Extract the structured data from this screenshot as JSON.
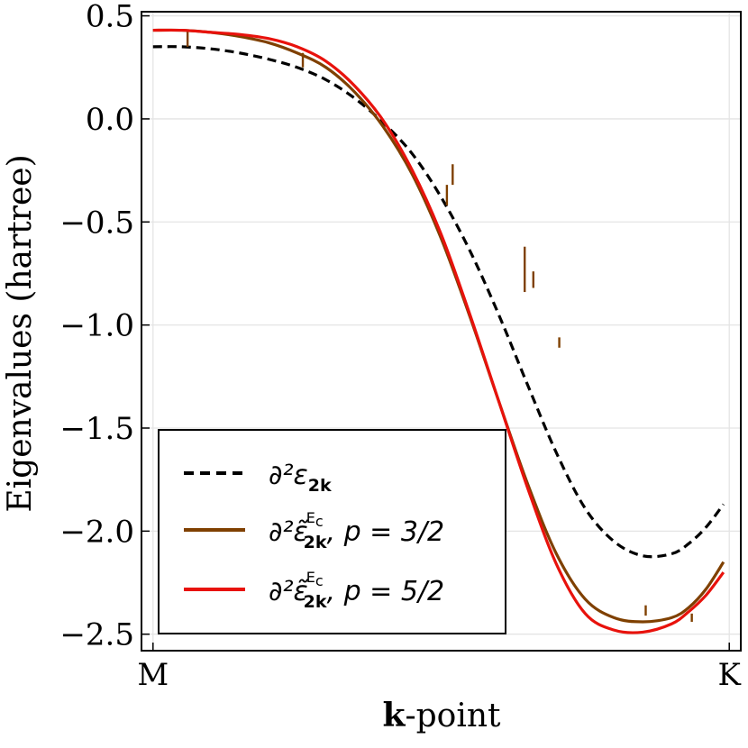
{
  "chart_data": {
    "type": "line",
    "title": "",
    "xlabel_bold": "k",
    "xlabel_rest": "-point",
    "ylabel": "Eigenvalues (hartree)",
    "ylim": [
      -2.58,
      0.52
    ],
    "xlim": [
      -0.02,
      1.02
    ],
    "grid": true,
    "legend_position": "bottom-left",
    "x_ticks": [
      {
        "x": 0.0,
        "label": "M"
      },
      {
        "x": 1.0,
        "label": "K"
      }
    ],
    "y_ticks": [
      {
        "value": 0.5,
        "label": "0.5"
      },
      {
        "value": 0.0,
        "label": "0.0"
      },
      {
        "value": -0.5,
        "label": "−0.5"
      },
      {
        "value": -1.0,
        "label": "−1.0"
      },
      {
        "value": -1.5,
        "label": "−1.5"
      },
      {
        "value": -2.0,
        "label": "−2.0"
      },
      {
        "value": -2.5,
        "label": "−2.5"
      }
    ],
    "series": [
      {
        "name": "exact",
        "legend": {
          "main": "∂²ε",
          "sub": "2k",
          "sup": ""
        },
        "color": "#000000",
        "style": "dashed",
        "x": [
          0.0,
          0.05,
          0.1,
          0.15,
          0.2,
          0.25,
          0.3,
          0.35,
          0.4,
          0.45,
          0.5,
          0.55,
          0.6,
          0.65,
          0.7,
          0.75,
          0.8,
          0.85,
          0.9,
          0.93,
          0.96,
          0.99
        ],
        "y": [
          0.35,
          0.35,
          0.34,
          0.32,
          0.29,
          0.25,
          0.19,
          0.1,
          -0.02,
          -0.17,
          -0.38,
          -0.64,
          -0.95,
          -1.29,
          -1.62,
          -1.89,
          -2.05,
          -2.12,
          -2.11,
          -2.06,
          -1.98,
          -1.87
        ]
      },
      {
        "name": "p32",
        "legend": {
          "main": "∂²ε̃",
          "sub": "2k",
          "sup": "E",
          "sup_sub": "c",
          "tail": ",  p = 3/2"
        },
        "color": "#7f4000",
        "style": "solid",
        "x": [
          0.0,
          0.05,
          0.1,
          0.15,
          0.2,
          0.25,
          0.3,
          0.35,
          0.4,
          0.45,
          0.5,
          0.55,
          0.6,
          0.65,
          0.7,
          0.75,
          0.8,
          0.85,
          0.9,
          0.93,
          0.96,
          0.99
        ],
        "y": [
          0.43,
          0.43,
          0.42,
          0.4,
          0.37,
          0.32,
          0.25,
          0.13,
          -0.04,
          -0.27,
          -0.58,
          -0.96,
          -1.37,
          -1.77,
          -2.11,
          -2.33,
          -2.42,
          -2.44,
          -2.42,
          -2.37,
          -2.28,
          -2.15
        ],
        "glitches": [
          {
            "x": 0.06,
            "y": 0.43,
            "depth": 0.08
          },
          {
            "x": 0.26,
            "y": 0.32,
            "depth": 0.07
          },
          {
            "x": 0.51,
            "y": -0.32,
            "depth": 0.1
          },
          {
            "x": 0.52,
            "y": -0.22,
            "depth": 0.1
          },
          {
            "x": 0.645,
            "y": -0.62,
            "depth": 0.22
          },
          {
            "x": 0.66,
            "y": -0.74,
            "depth": 0.08
          },
          {
            "x": 0.705,
            "y": -1.06,
            "depth": 0.05
          },
          {
            "x": 0.855,
            "y": -2.36,
            "depth": 0.05
          },
          {
            "x": 0.935,
            "y": -2.4,
            "depth": 0.04
          }
        ]
      },
      {
        "name": "p52",
        "legend": {
          "main": "∂²ε̃",
          "sub": "2k",
          "sup": "E",
          "sup_sub": "c",
          "tail": ",  p = 5/2"
        },
        "color": "#e8120c",
        "style": "solid",
        "x": [
          0.0,
          0.05,
          0.1,
          0.15,
          0.2,
          0.25,
          0.3,
          0.35,
          0.4,
          0.45,
          0.5,
          0.55,
          0.6,
          0.65,
          0.7,
          0.75,
          0.8,
          0.85,
          0.9,
          0.93,
          0.96,
          0.99
        ],
        "y": [
          0.43,
          0.43,
          0.42,
          0.41,
          0.39,
          0.35,
          0.28,
          0.16,
          -0.01,
          -0.25,
          -0.56,
          -0.95,
          -1.37,
          -1.79,
          -2.16,
          -2.4,
          -2.48,
          -2.49,
          -2.45,
          -2.39,
          -2.31,
          -2.2
        ]
      }
    ]
  }
}
